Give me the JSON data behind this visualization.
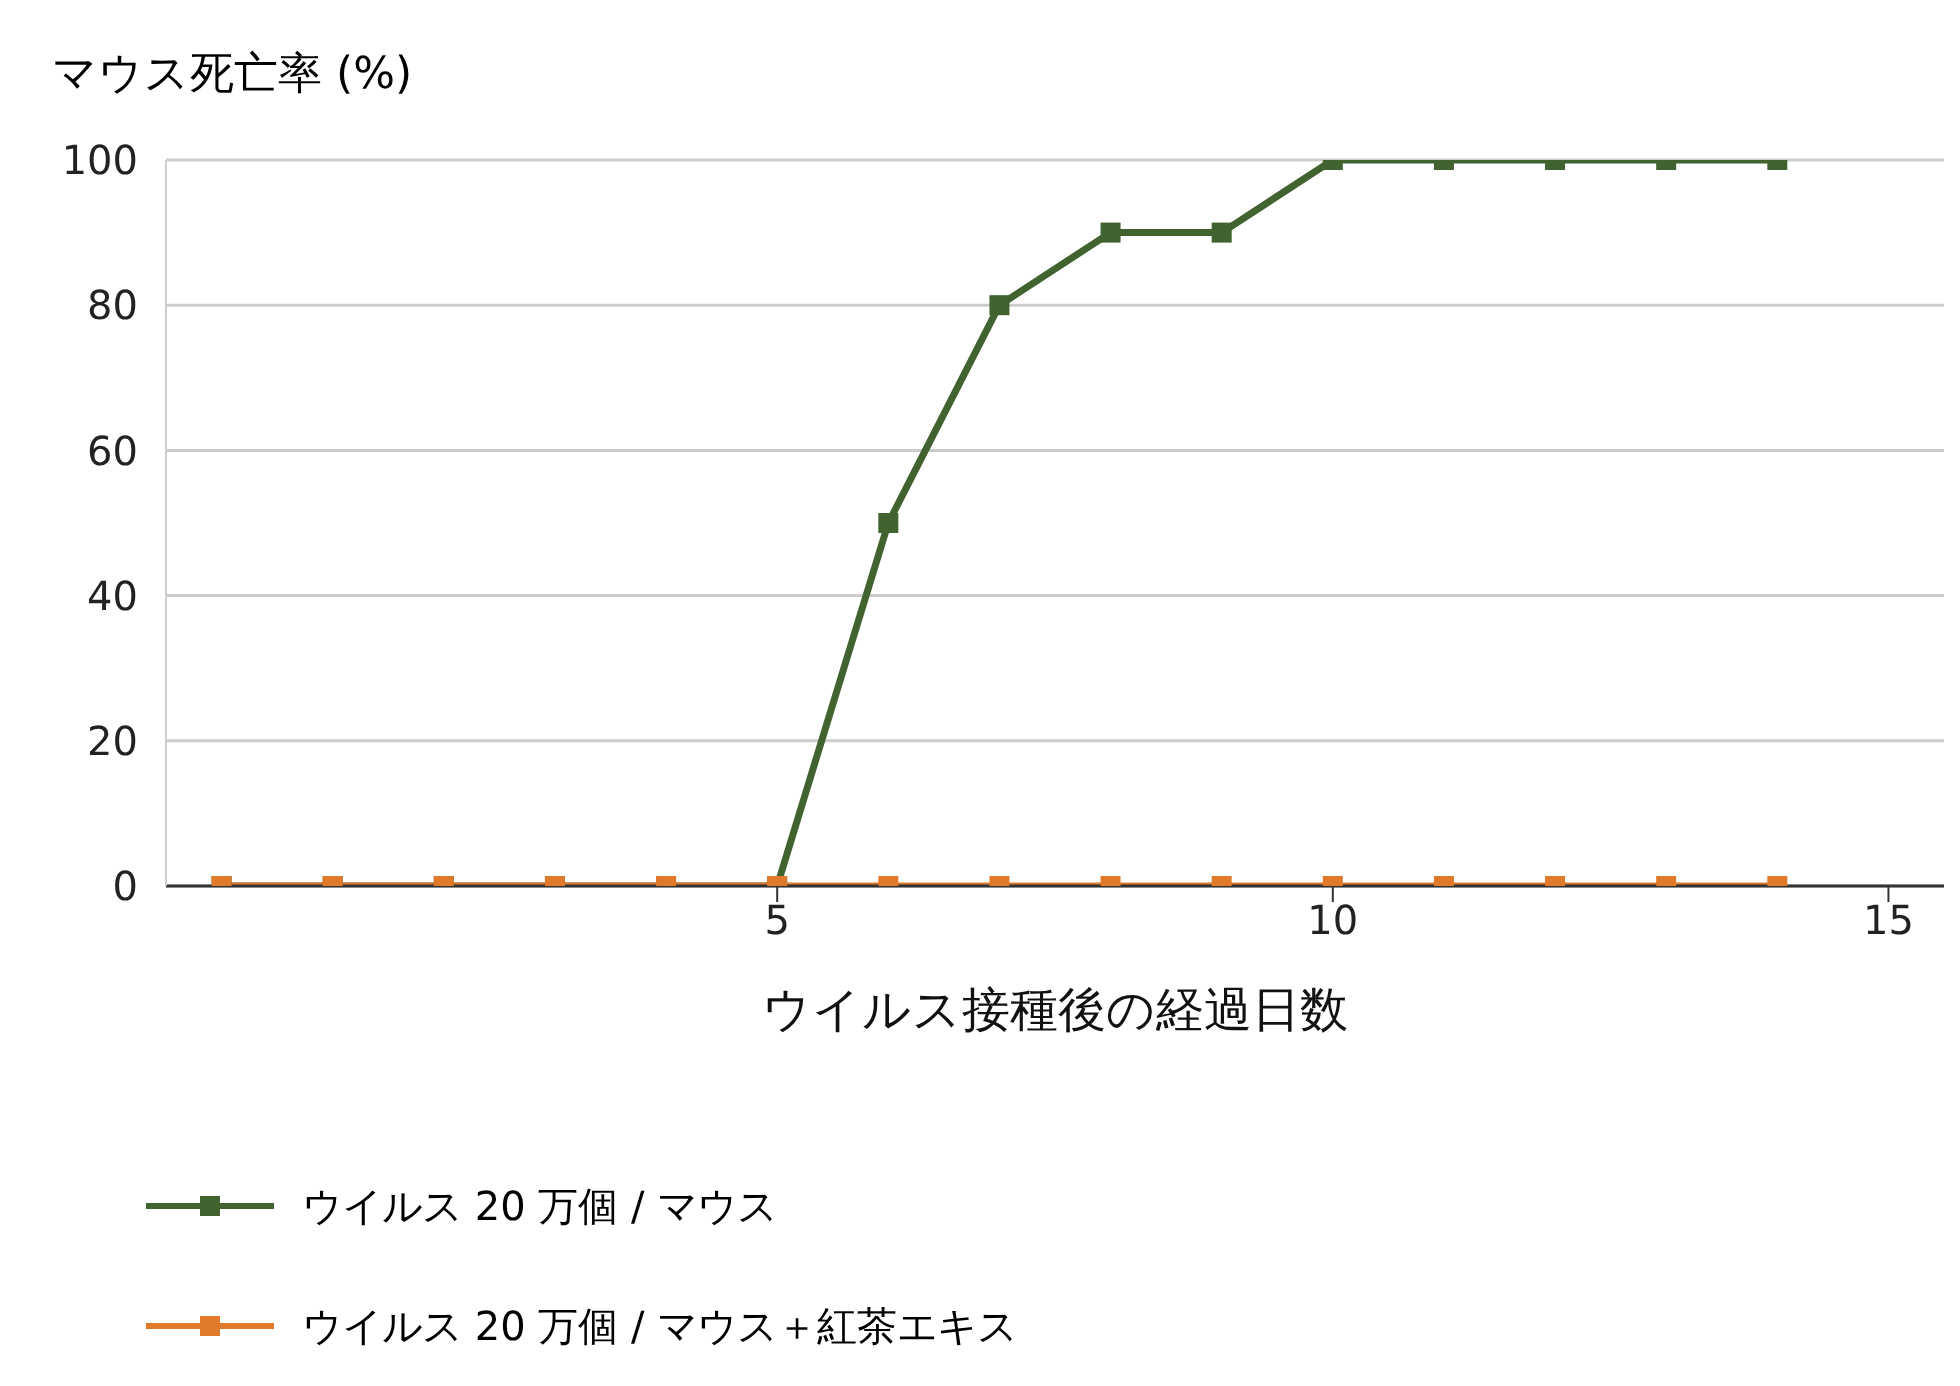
{
  "chart_data": {
    "type": "line",
    "ylabel": "マウス死亡率 (%)",
    "xlabel": "ウイルス接種後の経過日数",
    "x": [
      0,
      1,
      2,
      3,
      4,
      5,
      6,
      7,
      8,
      9,
      10,
      11,
      12,
      13,
      14
    ],
    "series": [
      {
        "name": "ウイルス 20 万個 / マウス",
        "color": "#41632f",
        "values": [
          0,
          0,
          0,
          0,
          0,
          0,
          50,
          80,
          90,
          90,
          100,
          100,
          100,
          100,
          100
        ]
      },
      {
        "name": "ウイルス 20 万個 / マウス＋紅茶エキス",
        "color": "#e07a2a",
        "values": [
          0,
          0,
          0,
          0,
          0,
          0,
          0,
          0,
          0,
          0,
          0,
          0,
          0,
          0,
          0
        ]
      }
    ],
    "xlim": [
      -0.5,
      15.5
    ],
    "xticks": [
      5,
      10,
      15
    ],
    "ylim": [
      0,
      100
    ],
    "yticks": [
      0,
      20,
      40,
      60,
      80,
      100
    ],
    "grid": "y",
    "legend": "bottom",
    "marker": "square",
    "line_style": "solid"
  }
}
